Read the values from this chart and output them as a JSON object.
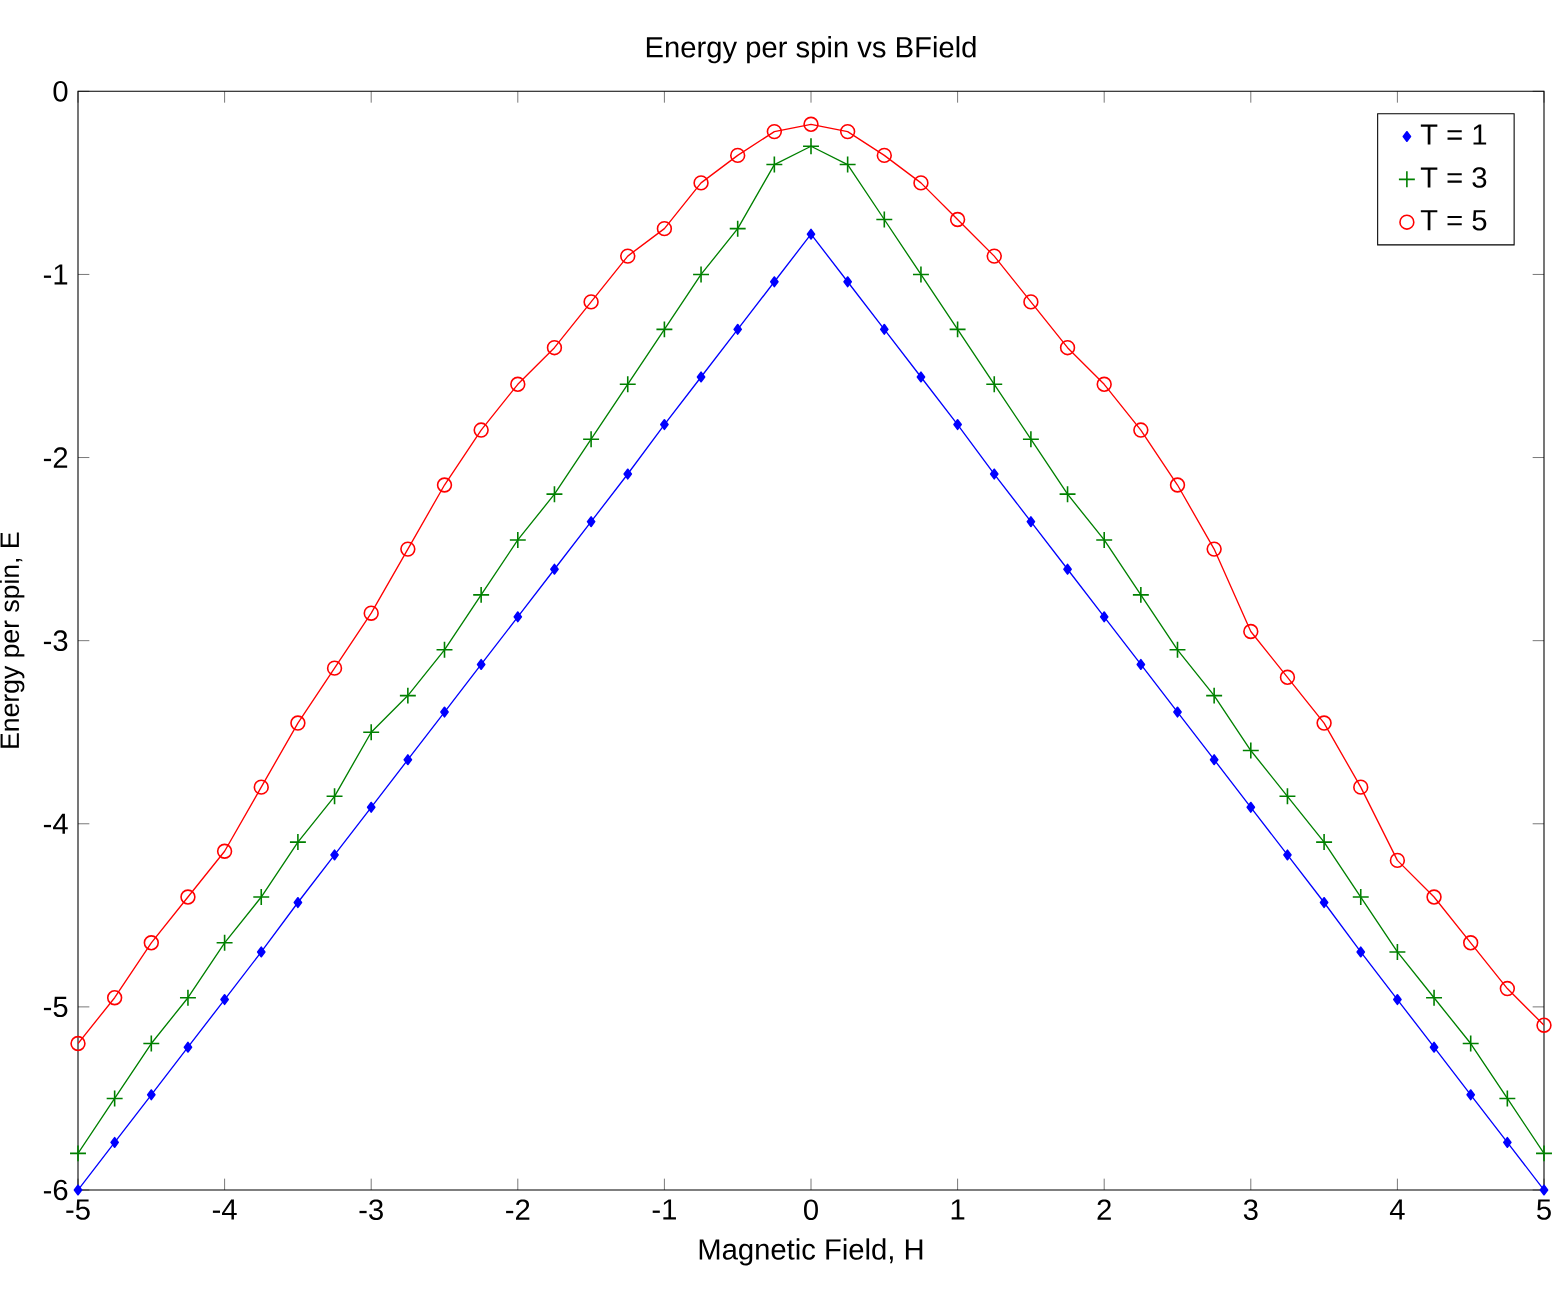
{
  "chart_data": {
    "type": "line",
    "title": "Energy per spin vs BField",
    "xlabel": "Magnetic Field, H",
    "ylabel": "Energy per spin, E",
    "x": [
      -5,
      -4.75,
      -4.5,
      -4.25,
      -4,
      -3.75,
      -3.5,
      -3.25,
      -3,
      -2.75,
      -2.5,
      -2.25,
      -2,
      -1.75,
      -1.5,
      -1.25,
      -1,
      -0.75,
      -0.5,
      -0.25,
      0,
      0.25,
      0.5,
      0.75,
      1,
      1.25,
      1.5,
      1.75,
      2,
      2.25,
      2.5,
      2.75,
      3,
      3.25,
      3.5,
      3.75,
      4,
      4.25,
      4.5,
      4.75,
      5
    ],
    "series": [
      {
        "name": "T = 1",
        "color": "#0000ff",
        "marker": "diamond",
        "values": [
          -6.0,
          -5.74,
          -5.48,
          -5.22,
          -4.96,
          -4.7,
          -4.43,
          -4.17,
          -3.91,
          -3.65,
          -3.39,
          -3.13,
          -2.87,
          -2.61,
          -2.35,
          -2.09,
          -1.82,
          -1.56,
          -1.3,
          -1.04,
          -0.78,
          -1.04,
          -1.3,
          -1.56,
          -1.82,
          -2.09,
          -2.35,
          -2.61,
          -2.87,
          -3.13,
          -3.39,
          -3.65,
          -3.91,
          -4.17,
          -4.43,
          -4.7,
          -4.96,
          -5.22,
          -5.48,
          -5.74,
          -6.0
        ]
      },
      {
        "name": "T = 3",
        "color": "#008000",
        "marker": "cross",
        "values": [
          -5.8,
          -5.5,
          -5.2,
          -4.95,
          -4.65,
          -4.4,
          -4.1,
          -3.85,
          -3.5,
          -3.3,
          -3.05,
          -2.75,
          -2.45,
          -2.2,
          -1.9,
          -1.6,
          -1.3,
          -1.0,
          -0.75,
          -0.4,
          -0.3,
          -0.4,
          -0.7,
          -1.0,
          -1.3,
          -1.6,
          -1.9,
          -2.2,
          -2.45,
          -2.75,
          -3.05,
          -3.3,
          -3.6,
          -3.85,
          -4.1,
          -4.4,
          -4.7,
          -4.95,
          -5.2,
          -5.5,
          -5.8
        ]
      },
      {
        "name": "T = 5",
        "color": "#ff0000",
        "marker": "circle",
        "values": [
          -5.2,
          -4.95,
          -4.65,
          -4.4,
          -4.15,
          -3.8,
          -3.45,
          -3.15,
          -2.85,
          -2.5,
          -2.15,
          -1.85,
          -1.6,
          -1.4,
          -1.15,
          -0.9,
          -0.75,
          -0.5,
          -0.35,
          -0.22,
          -0.18,
          -0.22,
          -0.35,
          -0.5,
          -0.7,
          -0.9,
          -1.15,
          -1.4,
          -1.6,
          -1.85,
          -2.15,
          -2.5,
          -2.95,
          -3.2,
          -3.45,
          -3.8,
          -4.2,
          -4.4,
          -4.65,
          -4.9,
          -5.1
        ]
      }
    ],
    "xlim": [
      -5,
      5
    ],
    "ylim": [
      -6,
      0
    ],
    "xticks": [
      -5,
      -4,
      -3,
      -2,
      -1,
      0,
      1,
      2,
      3,
      4,
      5
    ],
    "yticks": [
      -6,
      -5,
      -4,
      -3,
      -2,
      -1,
      0
    ],
    "legend": "top right"
  }
}
